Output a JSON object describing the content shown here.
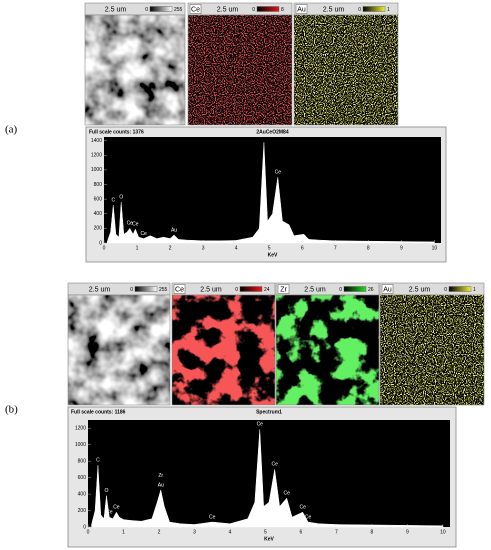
{
  "panels": [
    {
      "label": "(a)",
      "images": [
        {
          "scale": "2.5 um",
          "min": 0,
          "max": 255,
          "color": "#ffffff"
        },
        {
          "element": "Ce",
          "scale": "2.5 um",
          "min": 0,
          "max": 8,
          "color": "#e01818"
        },
        {
          "element": "Au",
          "scale": "2.5 um",
          "min": 0,
          "max": 1,
          "color": "#f0f030"
        }
      ]
    },
    {
      "label": "(b)",
      "images": [
        {
          "scale": "2.5 um",
          "min": 0,
          "max": 255,
          "color": "#ffffff"
        },
        {
          "element": "Ce",
          "scale": "2.5 um",
          "min": 0,
          "max": 24,
          "color": "#f01818"
        },
        {
          "element": "Zr",
          "scale": "2.5 um",
          "min": 0,
          "max": 26,
          "color": "#20e020"
        },
        {
          "element": "Au",
          "scale": "2.5 um",
          "min": 0,
          "max": 1,
          "color": "#f0f030"
        }
      ]
    }
  ],
  "chart_data": [
    {
      "type": "area",
      "header": "Full scale counts: 1376",
      "title": "2AuCeO2M84",
      "x_label": "KeV",
      "color": "#ffffff",
      "x": [
        0.1,
        0.2,
        0.28,
        0.36,
        0.45,
        0.52,
        0.6,
        0.7,
        0.78,
        0.88,
        0.95,
        1.05,
        1.2,
        1.4,
        1.6,
        1.8,
        2.0,
        2.12,
        2.25,
        2.5,
        3.0,
        3.5,
        4.0,
        4.5,
        4.7,
        4.84,
        4.95,
        5.1,
        5.26,
        5.4,
        5.6,
        5.75,
        6.05,
        6.2,
        6.5,
        7,
        8,
        9,
        10
      ],
      "values": [
        20,
        150,
        520,
        120,
        80,
        560,
        120,
        150,
        200,
        120,
        190,
        80,
        60,
        100,
        60,
        80,
        60,
        110,
        50,
        40,
        30,
        30,
        35,
        80,
        200,
        1376,
        300,
        400,
        900,
        300,
        250,
        100,
        120,
        50,
        40,
        30,
        25,
        20,
        15
      ],
      "annotations": [
        {
          "label": "C",
          "x": 0.28,
          "y": 520
        },
        {
          "label": "O",
          "x": 0.52,
          "y": 560
        },
        {
          "label": "Ce",
          "x": 0.78,
          "y": 200
        },
        {
          "label": "Ce",
          "x": 0.95,
          "y": 190
        },
        {
          "label": "Ce",
          "x": 1.2,
          "y": 60
        },
        {
          "label": "Au",
          "x": 2.12,
          "y": 110
        },
        {
          "label": "Ce",
          "x": 5.26,
          "y": 900
        }
      ],
      "xlim": [
        0,
        10.2
      ],
      "ylim": [
        0,
        1450
      ],
      "xticks": [
        0,
        1,
        2,
        3,
        4,
        5,
        6,
        7,
        8,
        9,
        10
      ],
      "yticks": [
        0,
        200,
        400,
        600,
        800,
        1000,
        1200,
        1400
      ]
    },
    {
      "type": "area",
      "header": "Full scale counts: 1186",
      "title": "Spectrum1",
      "x_label": "KeV",
      "color": "#ffffff",
      "x": [
        0.1,
        0.2,
        0.28,
        0.36,
        0.45,
        0.52,
        0.6,
        0.7,
        0.8,
        0.88,
        1.0,
        1.2,
        1.5,
        1.8,
        1.95,
        2.05,
        2.15,
        2.3,
        2.6,
        3.0,
        3.5,
        4.0,
        4.5,
        4.7,
        4.84,
        4.95,
        5.1,
        5.26,
        5.4,
        5.6,
        5.75,
        6.05,
        6.2,
        6.5,
        7,
        8,
        9,
        10
      ],
      "values": [
        30,
        200,
        750,
        150,
        100,
        380,
        120,
        100,
        180,
        120,
        90,
        80,
        70,
        100,
        300,
        450,
        250,
        60,
        40,
        30,
        60,
        40,
        100,
        300,
        1186,
        250,
        300,
        700,
        250,
        350,
        120,
        180,
        60,
        40,
        30,
        25,
        20,
        15
      ],
      "annotations": [
        {
          "label": "C",
          "x": 0.28,
          "y": 750
        },
        {
          "label": "O",
          "x": 0.52,
          "y": 380
        },
        {
          "label": "Ce",
          "x": 0.8,
          "y": 180
        },
        {
          "label": "Ce",
          "x": 0.6,
          "y": 120
        },
        {
          "label": "Zr",
          "x": 2.05,
          "y": 560
        },
        {
          "label": "Au",
          "x": 2.05,
          "y": 450
        },
        {
          "label": "Ce",
          "x": 3.5,
          "y": 60
        },
        {
          "label": "Ce",
          "x": 4.84,
          "y": 1186
        },
        {
          "label": "Ce",
          "x": 5.26,
          "y": 700
        },
        {
          "label": "Ce",
          "x": 5.6,
          "y": 350
        },
        {
          "label": "Ce",
          "x": 6.05,
          "y": 180
        },
        {
          "label": "Ce",
          "x": 6.2,
          "y": 60
        }
      ],
      "xlim": [
        0,
        10.2
      ],
      "ylim": [
        0,
        1300
      ],
      "xticks": [
        0,
        1,
        2,
        3,
        4,
        5,
        6,
        7,
        8,
        9,
        10
      ],
      "yticks": [
        0,
        200,
        400,
        600,
        800,
        1000,
        1200
      ]
    }
  ]
}
